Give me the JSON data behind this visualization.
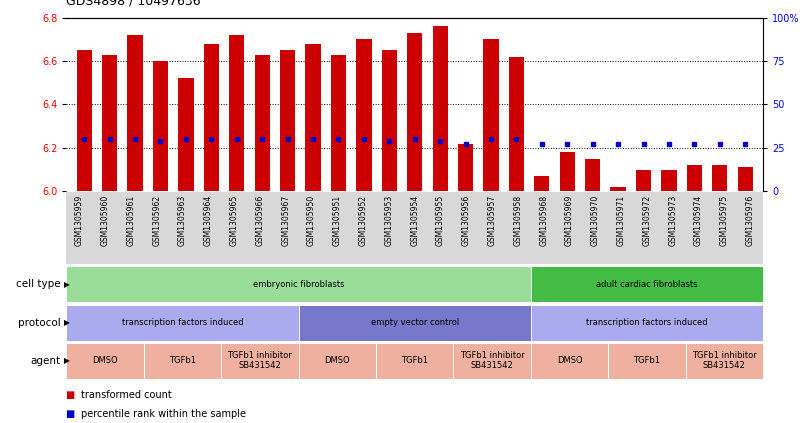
{
  "title": "GDS4898 / 10497636",
  "samples": [
    "GSM1305959",
    "GSM1305960",
    "GSM1305961",
    "GSM1305962",
    "GSM1305963",
    "GSM1305964",
    "GSM1305965",
    "GSM1305966",
    "GSM1305967",
    "GSM1305950",
    "GSM1305951",
    "GSM1305952",
    "GSM1305953",
    "GSM1305954",
    "GSM1305955",
    "GSM1305956",
    "GSM1305957",
    "GSM1305958",
    "GSM1305968",
    "GSM1305969",
    "GSM1305970",
    "GSM1305971",
    "GSM1305972",
    "GSM1305973",
    "GSM1305974",
    "GSM1305975",
    "GSM1305976"
  ],
  "bar_values": [
    6.65,
    6.63,
    6.72,
    6.6,
    6.52,
    6.68,
    6.72,
    6.63,
    6.65,
    6.68,
    6.63,
    6.7,
    6.65,
    6.73,
    6.76,
    6.22,
    6.7,
    6.62,
    6.07,
    6.18,
    6.15,
    6.02,
    6.1,
    6.1,
    6.12,
    6.12,
    6.11
  ],
  "percentile_values": [
    6.24,
    6.24,
    6.24,
    6.23,
    6.24,
    6.24,
    6.24,
    6.24,
    6.24,
    6.24,
    6.24,
    6.24,
    6.23,
    6.24,
    6.23,
    6.22,
    6.24,
    6.24,
    6.22,
    6.22,
    6.22,
    6.22,
    6.22,
    6.22,
    6.22,
    6.22,
    6.22
  ],
  "ylim_left": [
    6.0,
    6.8
  ],
  "ylim_right": [
    0,
    100
  ],
  "yticks_left": [
    6.0,
    6.2,
    6.4,
    6.6,
    6.8
  ],
  "yticks_right": [
    0,
    25,
    50,
    75,
    100
  ],
  "ytick_right_labels": [
    "0",
    "25",
    "50",
    "75",
    "100%"
  ],
  "bar_color": "#cc0000",
  "percentile_color": "#0000cc",
  "cell_type_row": {
    "label": "cell type",
    "sections": [
      {
        "text": "embryonic fibroblasts",
        "start": 0,
        "end": 18,
        "color": "#99dd99"
      },
      {
        "text": "adult cardiac fibroblasts",
        "start": 18,
        "end": 27,
        "color": "#44bb44"
      }
    ]
  },
  "protocol_row": {
    "label": "protocol",
    "sections": [
      {
        "text": "transcription factors induced",
        "start": 0,
        "end": 9,
        "color": "#aaaaee"
      },
      {
        "text": "empty vector control",
        "start": 9,
        "end": 18,
        "color": "#7777cc"
      },
      {
        "text": "transcription factors induced",
        "start": 18,
        "end": 27,
        "color": "#aaaaee"
      }
    ]
  },
  "agent_row": {
    "label": "agent",
    "sections": [
      {
        "text": "DMSO",
        "start": 0,
        "end": 3,
        "color": "#f0b0a0"
      },
      {
        "text": "TGFb1",
        "start": 3,
        "end": 6,
        "color": "#f0b0a0"
      },
      {
        "text": "TGFb1 inhibitor\nSB431542",
        "start": 6,
        "end": 9,
        "color": "#f0b0a0"
      },
      {
        "text": "DMSO",
        "start": 9,
        "end": 12,
        "color": "#f0b0a0"
      },
      {
        "text": "TGFb1",
        "start": 12,
        "end": 15,
        "color": "#f0b0a0"
      },
      {
        "text": "TGFb1 inhibitor\nSB431542",
        "start": 15,
        "end": 18,
        "color": "#f0b0a0"
      },
      {
        "text": "DMSO",
        "start": 18,
        "end": 21,
        "color": "#f0b0a0"
      },
      {
        "text": "TGFb1",
        "start": 21,
        "end": 24,
        "color": "#f0b0a0"
      },
      {
        "text": "TGFb1 inhibitor\nSB431542",
        "start": 24,
        "end": 27,
        "color": "#f0b0a0"
      }
    ]
  },
  "legend_items": [
    {
      "label": "transformed count",
      "color": "#cc0000"
    },
    {
      "label": "percentile rank within the sample",
      "color": "#0000cc"
    }
  ]
}
